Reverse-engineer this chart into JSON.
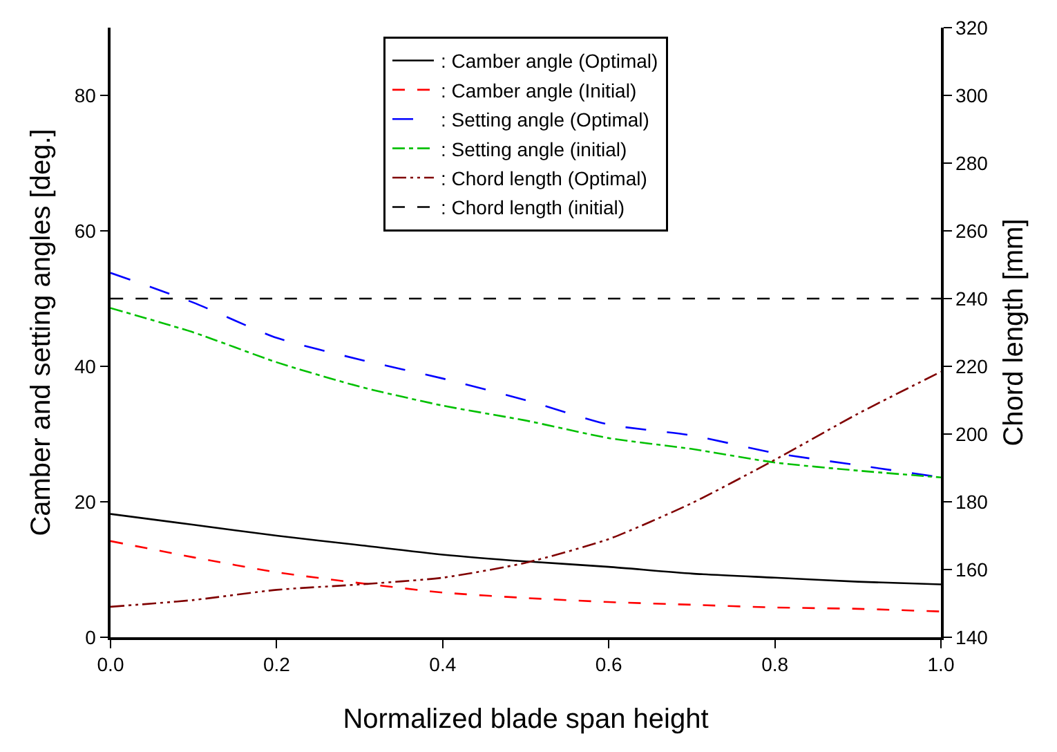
{
  "chart_data": {
    "type": "line",
    "xlabel": "Normalized blade span height",
    "ylabel": "Camber and setting angles [deg.]",
    "y2label": "Chord length [mm]",
    "x": [
      0,
      0.1,
      0.2,
      0.3,
      0.4,
      0.5,
      0.6,
      0.7,
      0.8,
      0.9,
      1.0
    ],
    "series": [
      {
        "name": ": Camber angle (Optimal)",
        "color": "#000000",
        "line_style": "solid",
        "values": [
          18.2,
          16.6,
          15,
          13.6,
          12.2,
          11.2,
          10.4,
          9.4,
          8.8,
          8.2,
          7.8
        ]
      },
      {
        "name": ": Camber angle (Initial)",
        "color": "#ff0000",
        "line_style": "dashed",
        "values": [
          14.2,
          11.8,
          9.6,
          8,
          6.6,
          5.8,
          5.2,
          4.8,
          4.4,
          4.2,
          3.8
        ]
      },
      {
        "name": ": Setting angle (Optimal)",
        "color": "#0000ff",
        "line_style": "longdash",
        "values": [
          53.8,
          49.4,
          44.2,
          41,
          38.2,
          35,
          31.4,
          29.8,
          27.2,
          25.4,
          23.6
        ]
      },
      {
        "name": ": Setting angle (initial)",
        "color": "#00c000",
        "line_style": "dashdot",
        "values": [
          48.6,
          45,
          40.6,
          37,
          34.2,
          32,
          29.4,
          27.8,
          25.8,
          24.6,
          23.6
        ]
      },
      {
        "name": ": Chord length (Optimal)",
        "color": "#800000",
        "line_style": "dashdotdot",
        "axis": "y2",
        "values": [
          149,
          151,
          154,
          155.6,
          157.6,
          162,
          169,
          179.6,
          192.4,
          206,
          218.4
        ]
      },
      {
        "name": ": Chord length (initial)",
        "color": "#000000",
        "line_style": "dashed",
        "axis": "y2",
        "values": [
          240,
          240,
          240,
          240,
          240,
          240,
          240,
          240,
          240,
          240,
          240
        ]
      }
    ],
    "xlim": [
      0,
      1
    ],
    "xticks": [
      {
        "value": 0,
        "label": "0.0"
      },
      {
        "value": 0.2,
        "label": "0.2"
      },
      {
        "value": 0.4,
        "label": "0.4"
      },
      {
        "value": 0.6,
        "label": "0.6"
      },
      {
        "value": 0.8,
        "label": "0.8"
      },
      {
        "value": 1.0,
        "label": "1.0"
      }
    ],
    "ylim": [
      0,
      90
    ],
    "yticks": [
      0,
      20,
      40,
      60,
      80
    ],
    "y2lim": [
      140,
      320
    ],
    "y2ticks": [
      140,
      160,
      180,
      200,
      220,
      240,
      260,
      280,
      300,
      320
    ],
    "legend": "top",
    "marker": "none"
  }
}
